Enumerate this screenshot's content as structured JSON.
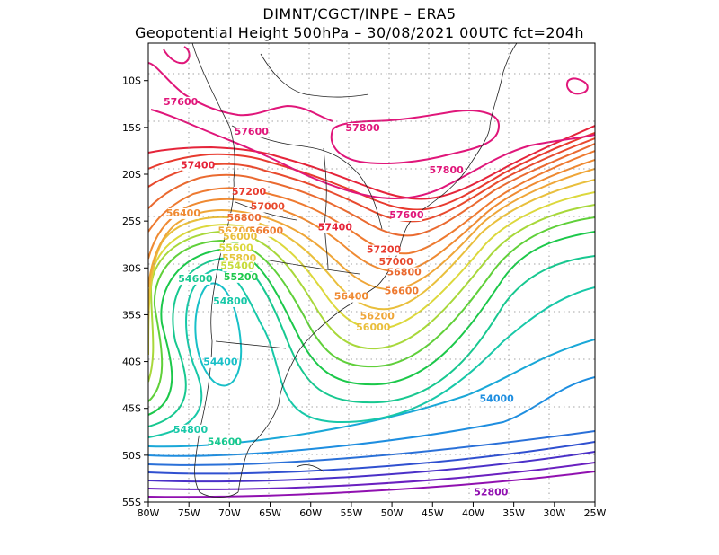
{
  "title": {
    "line1": "DIMNT/CGCT/INPE –  ERA5",
    "line2": "Geopotential Height 500hPa –  30/08/2021 00UTC fct=204h"
  },
  "map": {
    "extent": {
      "lon_min": -80,
      "lon_max": -25,
      "lat_min": -55,
      "lat_max": -6
    },
    "lon_ticks": [
      "80W",
      "75W",
      "70W",
      "65W",
      "60W",
      "55W",
      "50W",
      "45W",
      "40W",
      "35W",
      "30W",
      "25W"
    ],
    "lat_ticks": [
      "10S",
      "15S",
      "20S",
      "25S",
      "30S",
      "35S",
      "40S",
      "45S",
      "50S",
      "55S"
    ],
    "grid": "dotted",
    "contour_labels": [
      {
        "text": "57600",
        "lon": -76.0,
        "lat": -12.6,
        "color": "#e0167a"
      },
      {
        "text": "57600",
        "lon": -67.3,
        "lat": -15.8,
        "color": "#e0167a"
      },
      {
        "text": "57800",
        "lon": -53.6,
        "lat": -15.4,
        "color": "#e0167a"
      },
      {
        "text": "57800",
        "lon": -43.3,
        "lat": -19.9,
        "color": "#e0167a"
      },
      {
        "text": "57400",
        "lon": -73.9,
        "lat": -19.4,
        "color": "#e5243a"
      },
      {
        "text": "57600",
        "lon": -48.2,
        "lat": -24.7,
        "color": "#e0167a"
      },
      {
        "text": "57200",
        "lon": -67.6,
        "lat": -22.2,
        "color": "#e83a2e"
      },
      {
        "text": "57000",
        "lon": -65.3,
        "lat": -23.8,
        "color": "#e84a2e"
      },
      {
        "text": "56400",
        "lon": -75.7,
        "lat": -24.5,
        "color": "#ef8a32"
      },
      {
        "text": "56800",
        "lon": -68.2,
        "lat": -25.0,
        "color": "#ea6a30"
      },
      {
        "text": "56600",
        "lon": -65.5,
        "lat": -26.4,
        "color": "#ee7a30"
      },
      {
        "text": "57400",
        "lon": -57.0,
        "lat": -26.0,
        "color": "#e5243a"
      },
      {
        "text": "56200",
        "lon": -69.3,
        "lat": -26.4,
        "color": "#efa638"
      },
      {
        "text": "56000",
        "lon": -68.7,
        "lat": -27.0,
        "color": "#e9bf3c"
      },
      {
        "text": "55600",
        "lon": -69.2,
        "lat": -28.2,
        "color": "#dcd83c"
      },
      {
        "text": "55800",
        "lon": -68.8,
        "lat": -29.3,
        "color": "#e6c63c"
      },
      {
        "text": "55400",
        "lon": -69.0,
        "lat": -30.1,
        "color": "#c8dc3c"
      },
      {
        "text": "57200",
        "lon": -51.0,
        "lat": -28.4,
        "color": "#e83a2e"
      },
      {
        "text": "57000",
        "lon": -49.5,
        "lat": -29.7,
        "color": "#e84a2e"
      },
      {
        "text": "56800",
        "lon": -48.5,
        "lat": -30.8,
        "color": "#ea6a30"
      },
      {
        "text": "54600",
        "lon": -74.2,
        "lat": -31.5,
        "color": "#18c890"
      },
      {
        "text": "55200",
        "lon": -68.6,
        "lat": -31.3,
        "color": "#1cc84a"
      },
      {
        "text": "56600",
        "lon": -48.8,
        "lat": -32.8,
        "color": "#ee7a30"
      },
      {
        "text": "56400",
        "lon": -55.0,
        "lat": -33.4,
        "color": "#ef8a32"
      },
      {
        "text": "54800",
        "lon": -69.9,
        "lat": -33.9,
        "color": "#18c8a8"
      },
      {
        "text": "56200",
        "lon": -51.8,
        "lat": -35.5,
        "color": "#efa638"
      },
      {
        "text": "56000",
        "lon": -52.3,
        "lat": -36.7,
        "color": "#e9bf3c"
      },
      {
        "text": "54400",
        "lon": -71.1,
        "lat": -40.4,
        "color": "#18c0c8"
      },
      {
        "text": "54000",
        "lon": -37.1,
        "lat": -44.3,
        "color": "#1e8ee0"
      },
      {
        "text": "54800",
        "lon": -74.8,
        "lat": -47.6,
        "color": "#18c8a8"
      },
      {
        "text": "54600",
        "lon": -70.6,
        "lat": -48.9,
        "color": "#18c890"
      },
      {
        "text": "52800",
        "lon": -37.8,
        "lat": -54.3,
        "color": "#9010b0"
      }
    ]
  }
}
